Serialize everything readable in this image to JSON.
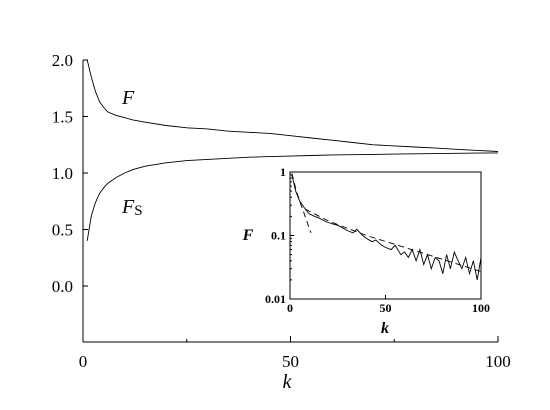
{
  "chart_data": [
    {
      "type": "line",
      "title": "",
      "xlabel": "k",
      "ylabel": "",
      "xlim": [
        0,
        100
      ],
      "ylim": [
        -0.5,
        2.0
      ],
      "xticks": [
        0,
        50,
        100
      ],
      "xtick_labels": [
        "0",
        "50",
        "100"
      ],
      "yticks": [
        0.0,
        0.5,
        1.0,
        1.5,
        2.0
      ],
      "ytick_labels": [
        "0.0",
        "0.5",
        "1.0",
        "1.5",
        "2.0"
      ],
      "grid": false,
      "series": [
        {
          "name": "F",
          "label_main": "F",
          "label_sub": "",
          "x": [
            1,
            2,
            3,
            4,
            5,
            6,
            8,
            10,
            12,
            15,
            20,
            25,
            30,
            35,
            40,
            45,
            50,
            55,
            60,
            65,
            70,
            75,
            80,
            85,
            90,
            95,
            100
          ],
          "y": [
            2.0,
            1.85,
            1.72,
            1.63,
            1.58,
            1.54,
            1.51,
            1.49,
            1.47,
            1.45,
            1.42,
            1.4,
            1.39,
            1.37,
            1.36,
            1.35,
            1.33,
            1.31,
            1.29,
            1.27,
            1.25,
            1.24,
            1.23,
            1.22,
            1.21,
            1.2,
            1.19
          ]
        },
        {
          "name": "FS",
          "label_main": "F",
          "label_sub": "S",
          "x": [
            1,
            2,
            3,
            4,
            5,
            6,
            8,
            10,
            12,
            15,
            20,
            25,
            30,
            35,
            40,
            45,
            50,
            55,
            60,
            65,
            70,
            75,
            80,
            85,
            90,
            95,
            100
          ],
          "y": [
            0.4,
            0.62,
            0.74,
            0.82,
            0.87,
            0.91,
            0.96,
            1.0,
            1.03,
            1.06,
            1.09,
            1.11,
            1.12,
            1.13,
            1.14,
            1.145,
            1.15,
            1.155,
            1.16,
            1.162,
            1.165,
            1.167,
            1.17,
            1.172,
            1.174,
            1.176,
            1.178
          ]
        }
      ]
    },
    {
      "type": "line",
      "title": "",
      "xlabel": "k",
      "ylabel": "F",
      "yscale": "log",
      "xlim": [
        0,
        100
      ],
      "ylim": [
        0.01,
        1
      ],
      "xticks": [
        0,
        50,
        100
      ],
      "xtick_labels": [
        "0",
        "50",
        "100"
      ],
      "yticks": [
        0.01,
        0.1,
        1
      ],
      "ytick_labels": [
        "0.01",
        "0.1",
        "1"
      ],
      "grid": false,
      "series": [
        {
          "style": "solid",
          "x": [
            1,
            3,
            5,
            8,
            10,
            13,
            15,
            18,
            20,
            23,
            25,
            28,
            30,
            33,
            35,
            38,
            40,
            43,
            45,
            48,
            50,
            53,
            55,
            58,
            60,
            62,
            64,
            66,
            68,
            70,
            72,
            74,
            76,
            78,
            80,
            82,
            84,
            86,
            88,
            90,
            92,
            94,
            96,
            98,
            100
          ],
          "y": [
            0.9,
            0.5,
            0.35,
            0.26,
            0.22,
            0.2,
            0.19,
            0.17,
            0.16,
            0.15,
            0.145,
            0.13,
            0.12,
            0.11,
            0.125,
            0.1,
            0.09,
            0.08,
            0.085,
            0.07,
            0.065,
            0.06,
            0.07,
            0.05,
            0.055,
            0.045,
            0.06,
            0.04,
            0.06,
            0.035,
            0.05,
            0.03,
            0.045,
            0.04,
            0.025,
            0.05,
            0.03,
            0.055,
            0.04,
            0.03,
            0.045,
            0.025,
            0.04,
            0.02,
            0.045
          ]
        },
        {
          "style": "dashed",
          "x": [
            1,
            3,
            5,
            7,
            9,
            11
          ],
          "y": [
            0.95,
            0.55,
            0.35,
            0.24,
            0.16,
            0.11
          ]
        },
        {
          "style": "dashed",
          "x": [
            8,
            20,
            40,
            60,
            80,
            100
          ],
          "y": [
            0.26,
            0.17,
            0.1,
            0.065,
            0.042,
            0.027
          ]
        }
      ]
    }
  ]
}
